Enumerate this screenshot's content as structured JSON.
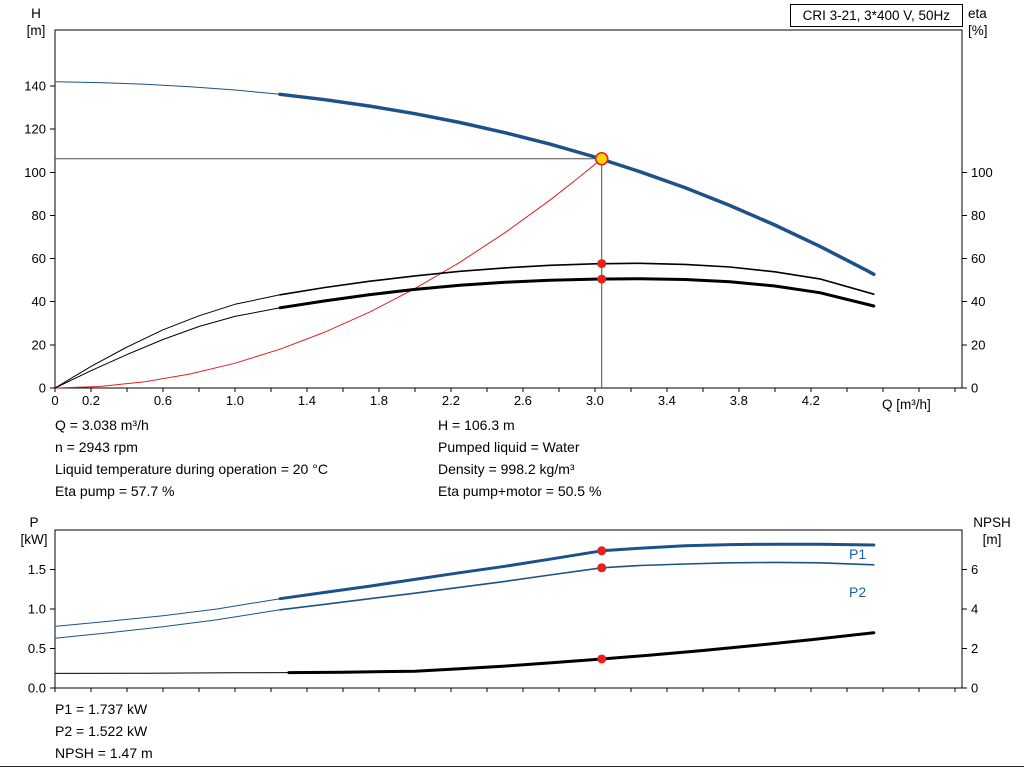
{
  "report": {
    "title_box": "CRI 3-21, 3*400 V, 50Hz",
    "top_axis_labels": {
      "left_line1": "H",
      "left_line2": "[m]",
      "right_line1": "eta",
      "right_line2": "[%]",
      "x": "Q [m³/h]"
    },
    "bottom_axis_labels": {
      "left_line1": "P",
      "left_line2": "[kW]",
      "right_line1": "NPSH",
      "right_line2": "[m]"
    },
    "operating_text": {
      "left": [
        "Q = 3.038 m³/h",
        "n = 2943 rpm",
        "Liquid temperature during operation = 20 °C",
        "Eta pump = 57.7 %"
      ],
      "right": [
        "H = 106.3 m",
        "Pumped liquid = Water",
        "Density = 998.2 kg/m³",
        "Eta pump+motor = 50.5 %"
      ]
    },
    "power_text": [
      "P1 = 1.737 kW",
      "P2 = 1.522 kW",
      "NPSH = 1.47 m"
    ],
    "series_labels": {
      "p1": "P1",
      "p2": "P2"
    },
    "colors": {
      "curve_blue": "#1c5287",
      "label_blue": "#1e5fa8",
      "curve_black": "#000000",
      "curve_red": "#e02020",
      "marker_red": "#e8201d",
      "marker_yellow": "#ffd500",
      "crosshair": "#4d4d4d",
      "frame": "#000000"
    }
  },
  "chart_data": [
    {
      "id": "hq",
      "type": "line",
      "title": "CRI 3-21, 3*400 V, 50Hz",
      "xlabel": "Q [m³/h]",
      "ylabel_left": "H [m]",
      "ylabel_right": "eta [%]",
      "x": {
        "min": 0,
        "max": 5.04,
        "minor_step": 0.2,
        "ticks": [
          {
            "v": 0,
            "t": "0"
          },
          {
            "v": 0.2,
            "t": "0.2"
          },
          {
            "v": 0.6,
            "t": "0.6"
          },
          {
            "v": 1.0,
            "t": "1.0"
          },
          {
            "v": 1.4,
            "t": "1.4"
          },
          {
            "v": 1.8,
            "t": "1.8"
          },
          {
            "v": 2.2,
            "t": "2.2"
          },
          {
            "v": 2.6,
            "t": "2.6"
          },
          {
            "v": 3.0,
            "t": "3.0"
          },
          {
            "v": 3.4,
            "t": "3.4"
          },
          {
            "v": 3.8,
            "t": "3.8"
          },
          {
            "v": 4.2,
            "t": "4.2"
          }
        ]
      },
      "y_left": {
        "min": 0,
        "max": 166,
        "ticks": [
          {
            "v": 0,
            "t": "0"
          },
          {
            "v": 20,
            "t": "20"
          },
          {
            "v": 40,
            "t": "40"
          },
          {
            "v": 60,
            "t": "60"
          },
          {
            "v": 80,
            "t": "80"
          },
          {
            "v": 100,
            "t": "100"
          },
          {
            "v": 120,
            "t": "120"
          },
          {
            "v": 140,
            "t": "140"
          }
        ]
      },
      "y_right": {
        "min": 0,
        "max": 166,
        "ticks": [
          {
            "v": 0,
            "t": "0"
          },
          {
            "v": 20,
            "t": "20"
          },
          {
            "v": 40,
            "t": "40"
          },
          {
            "v": 60,
            "t": "60"
          },
          {
            "v": 80,
            "t": "80"
          },
          {
            "v": 100,
            "t": "100"
          }
        ]
      },
      "crosshair": {
        "q": 3.038,
        "v": 106.3
      },
      "series": [
        {
          "name": "duty-curve",
          "color": "red",
          "width": 1,
          "axis": "left",
          "points": [
            [
              0,
              0
            ],
            [
              0.25,
              0.7
            ],
            [
              0.5,
              2.9
            ],
            [
              0.75,
              6.5
            ],
            [
              1.0,
              11.5
            ],
            [
              1.25,
              18.0
            ],
            [
              1.5,
              25.9
            ],
            [
              1.75,
              35.3
            ],
            [
              2.0,
              46.1
            ],
            [
              2.25,
              58.3
            ],
            [
              2.5,
              72.0
            ],
            [
              2.75,
              87.1
            ],
            [
              2.9,
              96.9
            ],
            [
              3.038,
              106.3
            ]
          ]
        },
        {
          "name": "eta-pump-curve-lead",
          "color": "black",
          "width": 1,
          "axis": "right",
          "points": [
            [
              0,
              0
            ],
            [
              0.2,
              10
            ],
            [
              0.4,
              19
            ],
            [
              0.6,
              27
            ],
            [
              0.8,
              33.5
            ],
            [
              1.0,
              38.8
            ],
            [
              1.25,
              43.2
            ]
          ]
        },
        {
          "name": "eta-pump-curve",
          "color": "black",
          "width": 1.6,
          "axis": "right",
          "points": [
            [
              1.25,
              43.2
            ],
            [
              1.5,
              46.6
            ],
            [
              1.75,
              49.5
            ],
            [
              2.0,
              52.0
            ],
            [
              2.25,
              54.1
            ],
            [
              2.5,
              55.7
            ],
            [
              2.75,
              56.9
            ],
            [
              3.0,
              57.6
            ],
            [
              3.25,
              57.8
            ],
            [
              3.5,
              57.3
            ],
            [
              3.75,
              56.1
            ],
            [
              4.0,
              53.9
            ],
            [
              4.25,
              50.6
            ],
            [
              4.55,
              43.5
            ]
          ]
        },
        {
          "name": "eta-pump-motor-curve-lead",
          "color": "black",
          "width": 1,
          "axis": "right",
          "points": [
            [
              0,
              0
            ],
            [
              0.2,
              8
            ],
            [
              0.4,
              15.5
            ],
            [
              0.6,
              22.5
            ],
            [
              0.8,
              28.5
            ],
            [
              1.0,
              33.2
            ],
            [
              1.25,
              37.2
            ]
          ]
        },
        {
          "name": "eta-pump-motor-curve",
          "color": "black",
          "width": 3,
          "axis": "right",
          "points": [
            [
              1.25,
              37.2
            ],
            [
              1.5,
              40.4
            ],
            [
              1.75,
              43.3
            ],
            [
              2.0,
              45.7
            ],
            [
              2.25,
              47.6
            ],
            [
              2.5,
              49.0
            ],
            [
              2.75,
              50.0
            ],
            [
              3.0,
              50.5
            ],
            [
              3.25,
              50.7
            ],
            [
              3.5,
              50.3
            ],
            [
              3.75,
              49.3
            ],
            [
              4.0,
              47.3
            ],
            [
              4.25,
              44.2
            ],
            [
              4.55,
              38.0
            ]
          ]
        },
        {
          "name": "qh-curve-lead",
          "color": "blue",
          "width": 1,
          "axis": "left",
          "points": [
            [
              0,
              142
            ],
            [
              0.25,
              141.6
            ],
            [
              0.5,
              140.8
            ],
            [
              0.75,
              139.7
            ],
            [
              1.0,
              138.2
            ],
            [
              1.25,
              136.2
            ]
          ]
        },
        {
          "name": "qh-curve",
          "color": "blue",
          "width": 3.5,
          "axis": "left",
          "points": [
            [
              1.25,
              136.2
            ],
            [
              1.5,
              133.7
            ],
            [
              1.75,
              130.7
            ],
            [
              2.0,
              127.2
            ],
            [
              2.25,
              123.1
            ],
            [
              2.5,
              118.4
            ],
            [
              2.75,
              113.1
            ],
            [
              3.0,
              107.1
            ],
            [
              3.25,
              100.3
            ],
            [
              3.5,
              92.9
            ],
            [
              3.75,
              84.6
            ],
            [
              4.0,
              75.6
            ],
            [
              4.25,
              65.7
            ],
            [
              4.5,
              55.0
            ],
            [
              4.55,
              52.7
            ]
          ]
        }
      ],
      "markers": [
        {
          "type": "dot",
          "axis": "right",
          "q": 3.038,
          "v": 57.7
        },
        {
          "type": "dot",
          "axis": "right",
          "q": 3.038,
          "v": 50.5
        },
        {
          "type": "op",
          "axis": "left",
          "q": 3.038,
          "v": 106.3
        }
      ]
    },
    {
      "id": "power",
      "type": "line",
      "xlabel": "",
      "ylabel_left": "P [kW]",
      "ylabel_right": "NPSH [m]",
      "x": {
        "min": 0,
        "max": 5.04,
        "minor_step": 0.2,
        "ticks": []
      },
      "y_left": {
        "min": 0,
        "max": 2.0,
        "ticks": [
          {
            "v": 0,
            "t": "0.0"
          },
          {
            "v": 0.5,
            "t": "0.5"
          },
          {
            "v": 1.0,
            "t": "1.0"
          },
          {
            "v": 1.5,
            "t": "1.5"
          }
        ]
      },
      "y_right": {
        "min": 0,
        "max": 8,
        "ticks": [
          {
            "v": 0,
            "t": "0"
          },
          {
            "v": 2,
            "t": "2"
          },
          {
            "v": 4,
            "t": "4"
          },
          {
            "v": 6,
            "t": "6"
          }
        ]
      },
      "series": [
        {
          "name": "p1-curve-lead",
          "color": "blue",
          "width": 1,
          "axis": "left",
          "points": [
            [
              0,
              0.78
            ],
            [
              0.3,
              0.845
            ],
            [
              0.6,
              0.915
            ],
            [
              0.9,
              1.0
            ],
            [
              1.25,
              1.13
            ]
          ]
        },
        {
          "name": "p1-curve",
          "color": "blue",
          "width": 3,
          "axis": "left",
          "points": [
            [
              1.25,
              1.13
            ],
            [
              1.5,
              1.21
            ],
            [
              1.75,
              1.29
            ],
            [
              2.0,
              1.375
            ],
            [
              2.25,
              1.46
            ],
            [
              2.5,
              1.54
            ],
            [
              2.75,
              1.63
            ],
            [
              3.038,
              1.737
            ],
            [
              3.25,
              1.77
            ],
            [
              3.5,
              1.8
            ],
            [
              3.75,
              1.815
            ],
            [
              4.0,
              1.82
            ],
            [
              4.25,
              1.82
            ],
            [
              4.55,
              1.81
            ]
          ]
        },
        {
          "name": "p2-curve-lead",
          "color": "blue",
          "width": 1,
          "axis": "left",
          "points": [
            [
              0,
              0.63
            ],
            [
              0.3,
              0.7
            ],
            [
              0.6,
              0.775
            ],
            [
              0.9,
              0.865
            ],
            [
              1.25,
              0.99
            ]
          ]
        },
        {
          "name": "p2-curve",
          "color": "blue",
          "width": 1.6,
          "axis": "left",
          "points": [
            [
              1.25,
              0.99
            ],
            [
              1.5,
              1.06
            ],
            [
              1.75,
              1.13
            ],
            [
              2.0,
              1.2
            ],
            [
              2.25,
              1.275
            ],
            [
              2.5,
              1.35
            ],
            [
              2.75,
              1.43
            ],
            [
              3.038,
              1.522
            ],
            [
              3.25,
              1.55
            ],
            [
              3.5,
              1.57
            ],
            [
              3.75,
              1.585
            ],
            [
              4.0,
              1.59
            ],
            [
              4.25,
              1.585
            ],
            [
              4.55,
              1.56
            ]
          ]
        },
        {
          "name": "npsh-curve-lead",
          "color": "black",
          "width": 1,
          "axis": "right",
          "points": [
            [
              0,
              0.74
            ],
            [
              0.5,
              0.75
            ],
            [
              1.0,
              0.77
            ],
            [
              1.3,
              0.78
            ]
          ]
        },
        {
          "name": "npsh-curve",
          "color": "black",
          "width": 3,
          "axis": "right",
          "points": [
            [
              1.3,
              0.78
            ],
            [
              1.6,
              0.8
            ],
            [
              2.0,
              0.85
            ],
            [
              2.25,
              0.97
            ],
            [
              2.5,
              1.11
            ],
            [
              2.75,
              1.27
            ],
            [
              3.038,
              1.47
            ],
            [
              3.3,
              1.66
            ],
            [
              3.6,
              1.9
            ],
            [
              3.9,
              2.16
            ],
            [
              4.2,
              2.44
            ],
            [
              4.55,
              2.8
            ]
          ]
        }
      ],
      "markers": [
        {
          "type": "dot",
          "axis": "left",
          "q": 3.038,
          "v": 1.737
        },
        {
          "type": "dot",
          "axis": "left",
          "q": 3.038,
          "v": 1.522
        },
        {
          "type": "dot",
          "axis": "right",
          "q": 3.038,
          "v": 1.47
        }
      ]
    }
  ]
}
